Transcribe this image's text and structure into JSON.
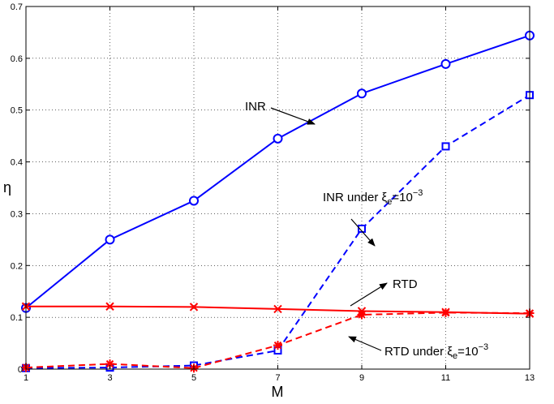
{
  "chart_data": {
    "type": "line",
    "xlabel": "M",
    "ylabel": "η",
    "x": [
      1,
      3,
      5,
      7,
      9,
      11,
      13
    ],
    "xlim": [
      1,
      13
    ],
    "ylim": [
      0,
      0.7
    ],
    "xticks": [
      "1",
      "3",
      "5",
      "7",
      "9",
      "11",
      "13"
    ],
    "yticks": [
      "0",
      "0.1",
      "0.2",
      "0.3",
      "0.4",
      "0.5",
      "0.6",
      "0.7"
    ],
    "grid": true,
    "series": [
      {
        "key": "inr",
        "values": [
          0.118,
          0.25,
          0.325,
          0.445,
          0.532,
          0.589,
          0.644
        ],
        "color": "#0000ff",
        "line": "solid",
        "marker": "circle"
      },
      {
        "key": "inr_xi",
        "values": [
          0.002,
          0.003,
          0.007,
          0.036,
          0.271,
          0.43,
          0.529
        ],
        "color": "#0000ff",
        "line": "dashed",
        "marker": "square"
      },
      {
        "key": "rtd",
        "values": [
          0.121,
          0.121,
          0.12,
          0.116,
          0.112,
          0.11,
          0.107
        ],
        "color": "#ff0000",
        "line": "solid",
        "marker": "x"
      },
      {
        "key": "rtd_xi",
        "values": [
          0.003,
          0.01,
          0.002,
          0.046,
          0.105,
          0.109,
          0.108
        ],
        "color": "#ff0000",
        "line": "dashed",
        "marker": "star"
      }
    ],
    "annotations": {
      "inr": {
        "text": "INR"
      },
      "inr_xi": {
        "text": "INR under ξ",
        "sub": "e",
        "mid": "=10",
        "sup": "−3"
      },
      "rtd": {
        "text": "RTD"
      },
      "rtd_xi": {
        "text": "RTD under ξ",
        "sub": "e",
        "mid": "=10",
        "sup": "−3"
      }
    }
  }
}
